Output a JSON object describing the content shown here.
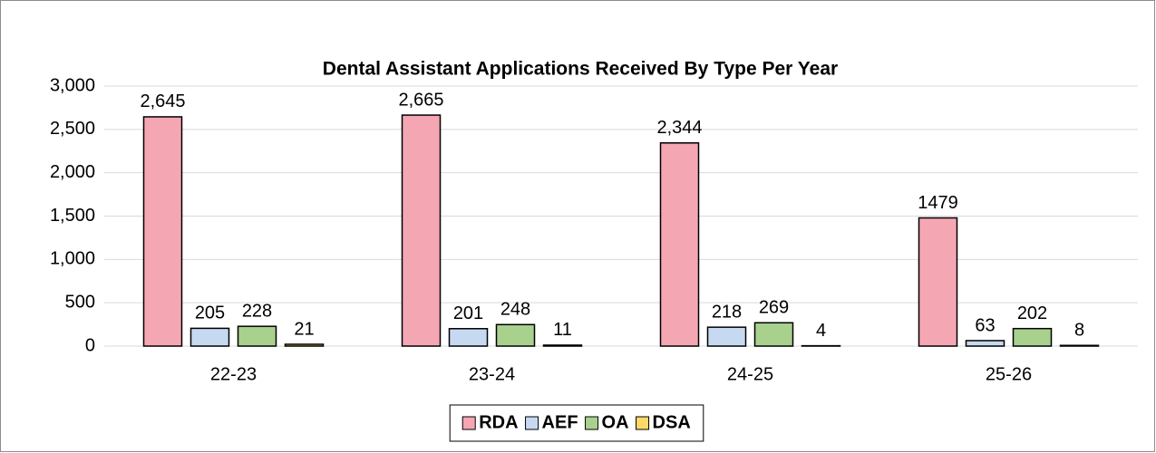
{
  "chart_data": {
    "type": "bar",
    "title": "Dental Assistant Applications Received By Type Per Year",
    "categories": [
      "22-23",
      "23-24",
      "24-25",
      "25-26"
    ],
    "series": [
      {
        "name": "RDA",
        "color": "#f4a7b3",
        "values": [
          2645,
          2665,
          2344,
          1479
        ],
        "value_labels": [
          "2,645",
          "2,665",
          "2,344",
          "1479"
        ]
      },
      {
        "name": "AEF",
        "color": "#c6d9f1",
        "values": [
          205,
          201,
          218,
          63
        ],
        "value_labels": [
          "205",
          "201",
          "218",
          "63"
        ]
      },
      {
        "name": "OA",
        "color": "#a9d18e",
        "values": [
          228,
          248,
          269,
          202
        ],
        "value_labels": [
          "228",
          "248",
          "269",
          "202"
        ]
      },
      {
        "name": "DSA",
        "color": "#ffd966",
        "values": [
          21,
          11,
          4,
          8
        ],
        "value_labels": [
          "21",
          "11",
          "4",
          "8"
        ]
      }
    ],
    "ylim": [
      0,
      3000
    ],
    "yticks": [
      0,
      500,
      {
        "value": 1000,
        "label": "1,000"
      },
      {
        "value": 1500,
        "label": "1,500"
      },
      {
        "value": 2000,
        "label": "2,000"
      },
      {
        "value": 2500,
        "label": "2,500"
      },
      {
        "value": 3000,
        "label": "3,000"
      }
    ],
    "grid": true,
    "legend": "bottom"
  }
}
